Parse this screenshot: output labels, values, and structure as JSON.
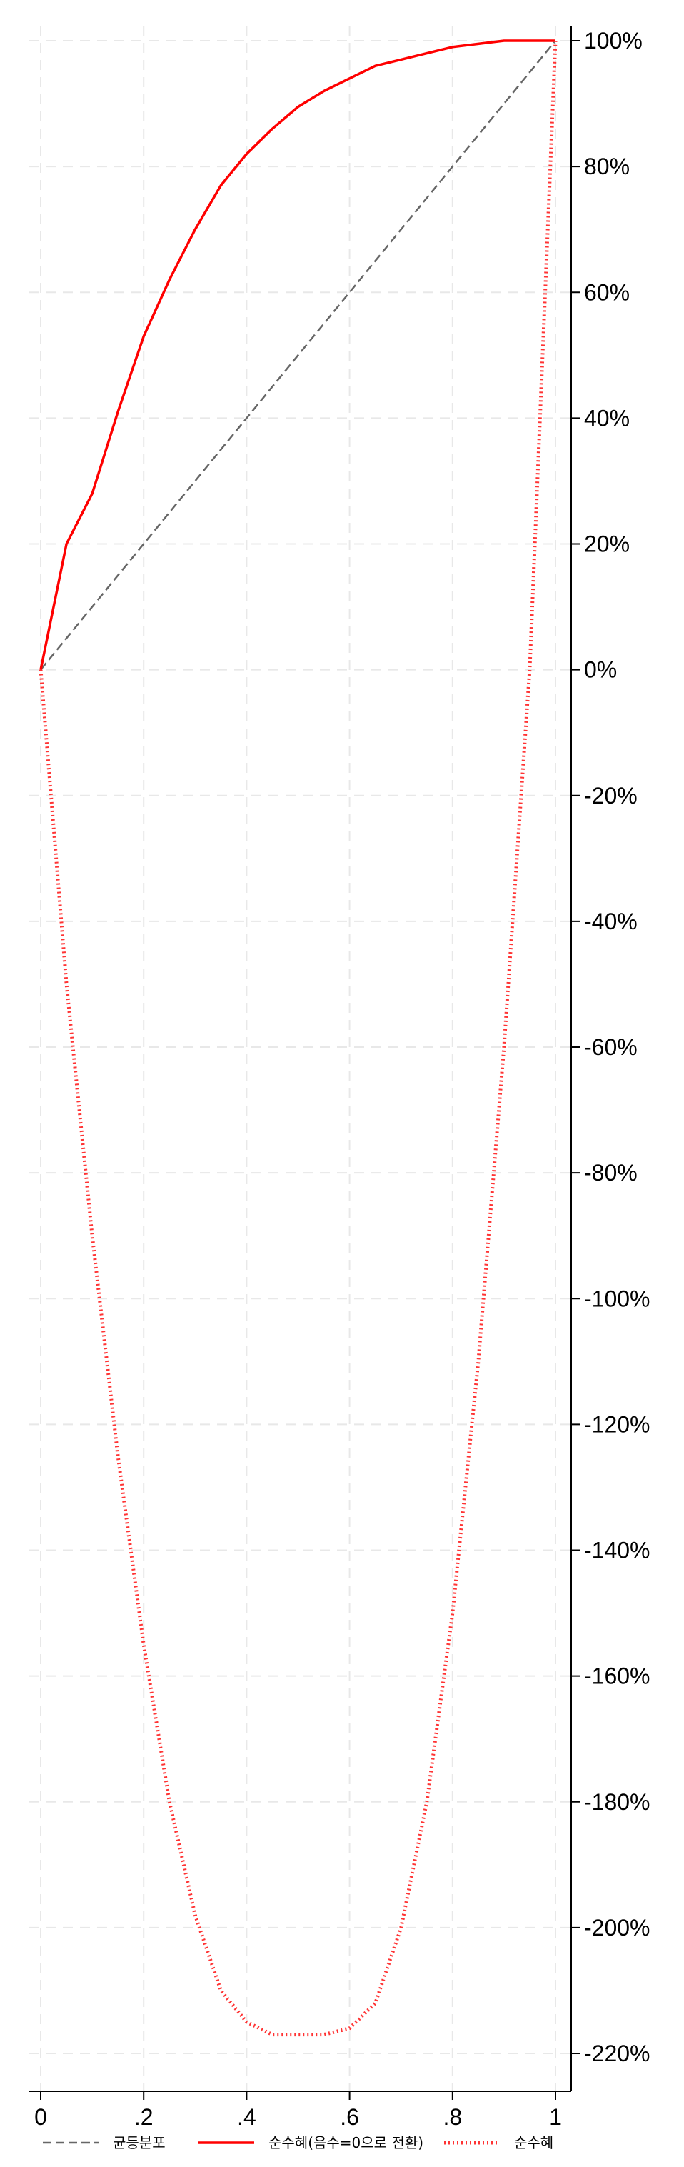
{
  "chart_data": {
    "type": "line",
    "x_ticks": [
      "0",
      ".2",
      ".4",
      ".6",
      ".8",
      "1"
    ],
    "x_tick_values": [
      0,
      0.2,
      0.4,
      0.6,
      0.8,
      1
    ],
    "y_ticks": [
      "100%",
      "80%",
      "60%",
      "40%",
      "20%",
      "0%",
      "-20%",
      "-40%",
      "-60%",
      "-80%",
      "-100%",
      "-120%",
      "-140%",
      "-160%",
      "-180%",
      "-200%",
      "-220%"
    ],
    "y_tick_values": [
      100,
      80,
      60,
      40,
      20,
      0,
      -20,
      -40,
      -60,
      -80,
      -100,
      -120,
      -140,
      -160,
      -180,
      -200,
      -220
    ],
    "xlim": [
      0,
      1
    ],
    "ylim": [
      -220,
      100
    ],
    "y_axis_side": "right",
    "grid": true,
    "legend_position": "bottom",
    "series": [
      {
        "name": "균등분포",
        "style": "dashed",
        "color": "#666666",
        "x": [
          0,
          1
        ],
        "y": [
          0,
          100
        ]
      },
      {
        "name": "순수혜(음수=0으로 전환)",
        "style": "solid",
        "color": "#ff0000",
        "x": [
          0,
          0.05,
          0.1,
          0.15,
          0.2,
          0.25,
          0.3,
          0.35,
          0.4,
          0.45,
          0.5,
          0.55,
          0.6,
          0.65,
          0.7,
          0.75,
          0.8,
          0.85,
          0.9,
          0.95,
          1
        ],
        "y": [
          0,
          20,
          28,
          41,
          53,
          62,
          70,
          77,
          82,
          86,
          89.5,
          92,
          94,
          96,
          97,
          98,
          99,
          99.5,
          100,
          100,
          100
        ]
      },
      {
        "name": "순수혜",
        "style": "dotted",
        "color": "#ff3333",
        "x": [
          0,
          0.05,
          0.1,
          0.15,
          0.2,
          0.25,
          0.3,
          0.35,
          0.4,
          0.45,
          0.5,
          0.55,
          0.6,
          0.65,
          0.7,
          0.75,
          0.8,
          0.85,
          0.9,
          0.95,
          1
        ],
        "y": [
          0,
          -50,
          -90,
          -125,
          -155,
          -180,
          -198,
          -210,
          -215,
          -217,
          -217,
          -217,
          -216,
          -212,
          -200,
          -180,
          -150,
          -110,
          -60,
          0,
          100
        ]
      }
    ]
  }
}
